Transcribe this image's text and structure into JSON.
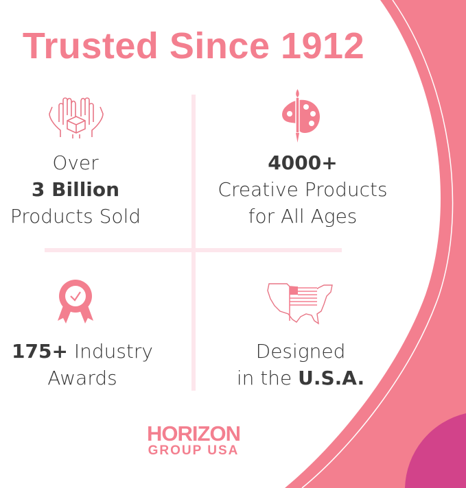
{
  "title": "Trusted Since 1912",
  "colors": {
    "accent": "#f37f8f",
    "magenta": "#d2438a",
    "divider": "#fde6ec",
    "text": "#333333"
  },
  "stats": [
    {
      "icon": "hands-box-icon",
      "line1": "Over",
      "bold": "3 Billion",
      "line3": "Products Sold"
    },
    {
      "icon": "palette-brush-icon",
      "bold": "4000+",
      "line2": "Creative Products",
      "line3": "for All Ages"
    },
    {
      "icon": "award-ribbon-icon",
      "bold": "175+",
      "line1_rest": " Industry",
      "line2": "Awards"
    },
    {
      "icon": "usa-map-flag-icon",
      "line1": "Designed",
      "line2_pre": "in the ",
      "bold": "U.S.A."
    }
  ],
  "logo": {
    "line1": "HORIZON",
    "line2": "GROUP USA"
  }
}
